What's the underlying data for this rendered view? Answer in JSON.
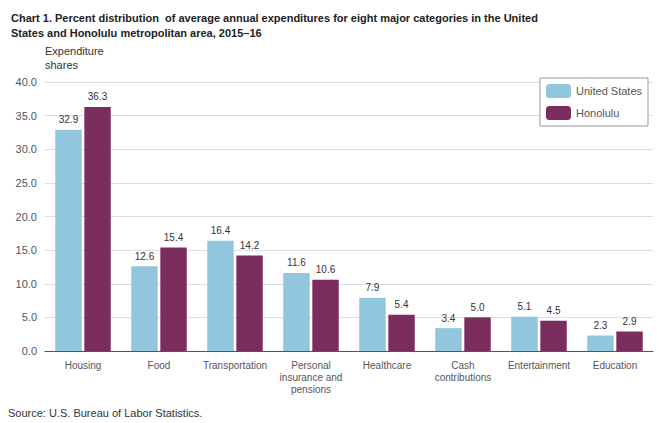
{
  "chart_data": {
    "type": "bar",
    "title": "Chart 1. Percent distribution  of average annual expenditures for eight major categories in the United\nStates and Honolulu metropolitan area, 2015–16",
    "y_label": "Expenditure\nshares",
    "annotations": [
      "Source: U.S. Bureau of Labor Statistics."
    ],
    "categories": [
      "Housing",
      "Food",
      "Transportation",
      "Personal\ninsurance and\npensions",
      "Healthcare",
      "Cash\ncontributions",
      "Entertainment",
      "Education"
    ],
    "series": [
      {
        "name": "United States",
        "color": "#92C5DE",
        "values": [
          32.9,
          12.6,
          16.4,
          11.6,
          7.9,
          3.4,
          5.1,
          2.3
        ],
        "value_labels": [
          "32.9",
          "12.6",
          "16.4",
          "11.6",
          "7.9",
          "3.4",
          "5.1",
          "2.3"
        ]
      },
      {
        "name": "Honolulu",
        "color": "#7B2D5E",
        "values": [
          36.3,
          15.4,
          14.2,
          10.6,
          5.4,
          5.0,
          4.5,
          2.9
        ],
        "value_labels": [
          "36.3",
          "15.4",
          "14.2",
          "10.6",
          "5.4",
          "5.0",
          "4.5",
          "2.9"
        ]
      }
    ],
    "ylim": [
      0,
      40
    ],
    "yticks": [
      {
        "value": 0,
        "label": "0.0"
      },
      {
        "value": 5,
        "label": "5.0"
      },
      {
        "value": 10,
        "label": "10.0"
      },
      {
        "value": 15,
        "label": "15.0"
      },
      {
        "value": 20,
        "label": "20.0"
      },
      {
        "value": 25,
        "label": "25.0"
      },
      {
        "value": 30,
        "label": "30.0"
      },
      {
        "value": 35,
        "label": "35.0"
      },
      {
        "value": 40,
        "label": "40.0"
      }
    ],
    "grid": true,
    "legend": "upper right",
    "data_labels": true
  }
}
